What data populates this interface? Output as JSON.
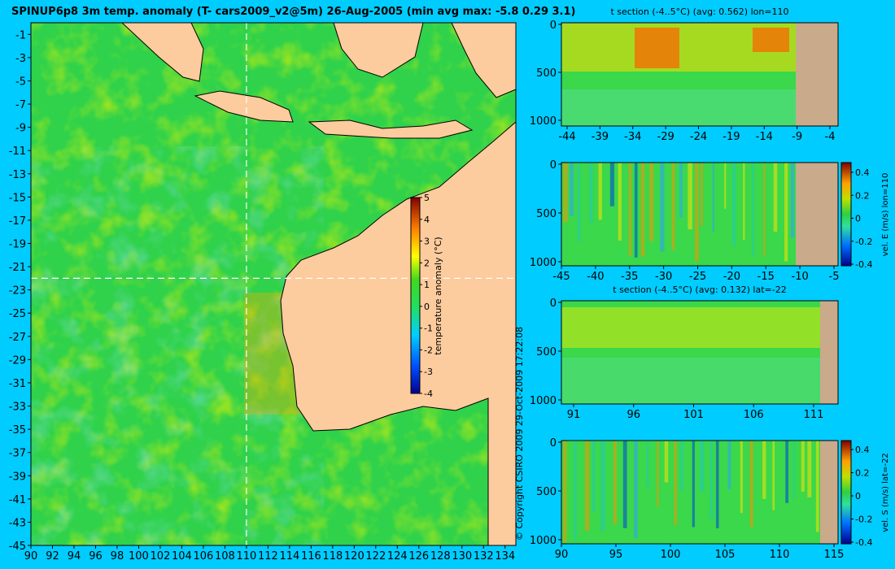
{
  "title": "SPINUP6p8 3m temp. anomaly (T- cars2009_v2@5m) 26-Aug-2005 (min avg max: -5.8 0.29 3.1)",
  "copyright": "© Copyright CSIRO 2009   29-Oct-2009 17:22:08",
  "colors": {
    "page_bg": "#00ccff",
    "ocean_green": "#2fd24a",
    "land": "#fccb9e",
    "section_land": "#c9aa8b",
    "crosshair": "#ffffff"
  },
  "chart_data": [
    {
      "type": "heatmap",
      "id": "map",
      "xlim": [
        90,
        135
      ],
      "ylim": [
        -45,
        0
      ],
      "x_ticks": [
        "90",
        "92",
        "94",
        "96",
        "98",
        "100",
        "102",
        "104",
        "106",
        "108",
        "110",
        "112",
        "114",
        "116",
        "118",
        "120",
        "122",
        "124",
        "126",
        "128",
        "130",
        "132",
        "134"
      ],
      "y_ticks": [
        "-1",
        "-3",
        "-5",
        "-7",
        "-9",
        "-11",
        "-13",
        "-15",
        "-17",
        "-19",
        "-21",
        "-23",
        "-25",
        "-27",
        "-29",
        "-31",
        "-33",
        "-35",
        "-37",
        "-39",
        "-41",
        "-43",
        "-45"
      ],
      "crosshair": {
        "lon": 110,
        "lat": -22
      },
      "colorbar": {
        "label": "temperature anomaly (°C)",
        "ticks": [
          "5",
          "4",
          "3",
          "2",
          "1",
          "0",
          "-1",
          "-2",
          "-3",
          "-4"
        ],
        "range": [
          -4,
          5
        ]
      }
    },
    {
      "type": "heatmap",
      "id": "t-lon",
      "title": "t section (-4..5°C) (avg: 0.562) lon=110",
      "x_ticks": [
        "-44",
        "-39",
        "-34",
        "-29",
        "-24",
        "-19",
        "-14",
        "-9",
        "-4"
      ],
      "y_ticks": [
        "0",
        "500",
        "1000"
      ]
    },
    {
      "type": "heatmap",
      "id": "v-lon",
      "x_ticks": [
        "-45",
        "-40",
        "-35",
        "-30",
        "-25",
        "-20",
        "-15",
        "-10",
        "-5"
      ],
      "y_ticks": [
        "0",
        "500",
        "1000"
      ],
      "colorbar": {
        "label": "vel. E (m/s) lon=110",
        "ticks": [
          "0.4",
          "0.2",
          "0",
          "-0.2",
          "-0.4"
        ],
        "range": [
          -0.4,
          0.4
        ]
      }
    },
    {
      "type": "heatmap",
      "id": "t-lat",
      "title": "t section (-4..5°C) (avg: 0.132) lat=-22",
      "x_ticks": [
        "91",
        "96",
        "101",
        "106",
        "111"
      ],
      "y_ticks": [
        "0",
        "500",
        "1000"
      ]
    },
    {
      "type": "heatmap",
      "id": "v-lat",
      "x_ticks": [
        "90",
        "95",
        "100",
        "105",
        "110",
        "115"
      ],
      "y_ticks": [
        "0",
        "500",
        "1000"
      ],
      "colorbar": {
        "label": "vel. S (m/s) lat=-22",
        "ticks": [
          "0.4",
          "0.2",
          "0",
          "-0.2",
          "-0.4"
        ],
        "range": [
          -0.4,
          0.4
        ]
      }
    }
  ]
}
